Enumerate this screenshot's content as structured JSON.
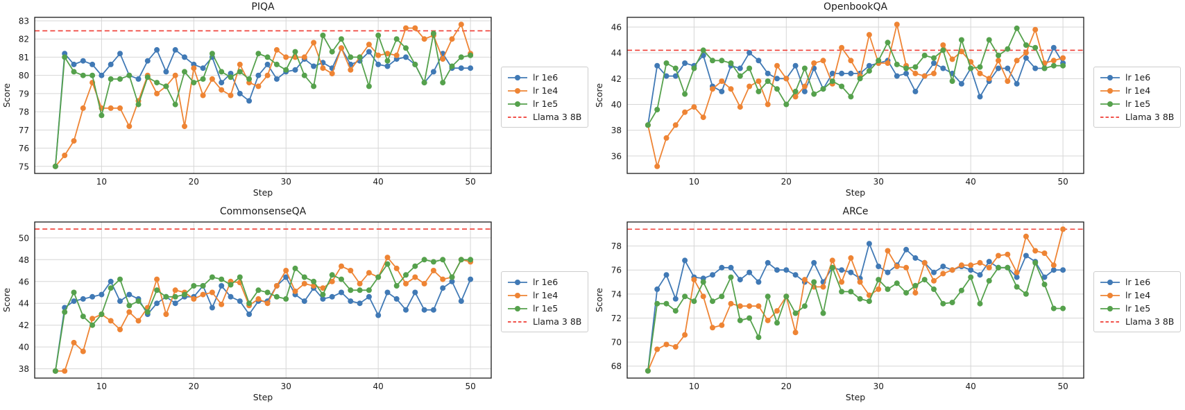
{
  "figure": {
    "background": "#ffffff"
  },
  "colors": {
    "blue": "#4079b5",
    "orange": "#ee8434",
    "green": "#55a14c",
    "red": "#ef3b33",
    "grid": "#d6d6d6",
    "spine": "#1a1a1a",
    "text": "#1a1a1a"
  },
  "chart_data": [
    {
      "type": "line",
      "title": "PIQA",
      "xlabel": "Step",
      "ylabel": "Score",
      "grid": true,
      "legend_position": "center right, outside axes",
      "x": [
        5,
        6,
        7,
        8,
        9,
        10,
        11,
        12,
        13,
        14,
        15,
        16,
        17,
        18,
        19,
        20,
        21,
        22,
        23,
        24,
        25,
        26,
        27,
        28,
        29,
        30,
        31,
        32,
        33,
        34,
        35,
        36,
        37,
        38,
        39,
        40,
        41,
        42,
        43,
        44,
        45,
        46,
        47,
        48,
        49,
        50
      ],
      "xlim": [
        2.75,
        52.25
      ],
      "xticks": [
        10,
        20,
        30,
        40,
        50
      ],
      "ylim": [
        74.61,
        83.19
      ],
      "yticks": [
        75,
        76,
        77,
        78,
        79,
        80,
        81,
        82,
        83
      ],
      "baseline": {
        "label": "Llama 3 8B",
        "value": 82.45,
        "style": "dashed",
        "color_key": "red"
      },
      "series": [
        {
          "name": "lr 1e6",
          "color_key": "blue",
          "values": [
            75.0,
            81.2,
            80.6,
            80.8,
            80.6,
            80.0,
            80.6,
            81.2,
            80.0,
            79.8,
            80.8,
            81.4,
            80.2,
            81.4,
            81.0,
            80.6,
            80.4,
            81.0,
            79.6,
            80.1,
            79.0,
            78.6,
            80.0,
            80.6,
            79.8,
            80.2,
            80.3,
            80.9,
            80.5,
            80.7,
            80.4,
            81.5,
            80.6,
            80.8,
            81.3,
            80.6,
            80.5,
            80.9,
            81.0,
            80.6,
            79.6,
            80.2,
            81.2,
            80.4,
            80.4,
            80.4
          ]
        },
        {
          "name": "lr 1e4",
          "color_key": "orange",
          "values": [
            75.0,
            75.6,
            76.4,
            78.2,
            79.6,
            78.2,
            78.2,
            78.2,
            77.2,
            78.6,
            80.0,
            79.0,
            79.4,
            80.0,
            77.2,
            80.4,
            78.9,
            79.8,
            79.2,
            78.9,
            80.6,
            79.6,
            79.4,
            80.0,
            81.4,
            81.0,
            81.0,
            81.0,
            81.8,
            80.4,
            80.1,
            81.5,
            80.3,
            81.0,
            81.7,
            81.1,
            81.2,
            81.1,
            82.6,
            82.6,
            82.0,
            82.2,
            80.9,
            82.0,
            82.8,
            81.2
          ]
        },
        {
          "name": "lr 1e5",
          "color_key": "green",
          "values": [
            75.0,
            81.0,
            80.2,
            80.0,
            80.0,
            77.8,
            79.8,
            79.8,
            80.0,
            78.4,
            79.9,
            79.6,
            79.4,
            78.4,
            80.2,
            79.6,
            79.8,
            81.2,
            80.2,
            79.9,
            80.2,
            79.8,
            81.2,
            81.0,
            80.6,
            80.3,
            81.3,
            80.0,
            79.4,
            82.2,
            81.3,
            82.0,
            81.0,
            81.0,
            79.4,
            82.2,
            80.8,
            82.0,
            81.5,
            80.6,
            79.6,
            82.3,
            79.6,
            80.5,
            81.0,
            81.1
          ]
        }
      ]
    },
    {
      "type": "line",
      "title": "OpenbookQA",
      "xlabel": "Step",
      "ylabel": "Score",
      "grid": true,
      "legend_position": "center right, outside axes",
      "x": [
        5,
        6,
        7,
        8,
        9,
        10,
        11,
        12,
        13,
        14,
        15,
        16,
        17,
        18,
        19,
        20,
        21,
        22,
        23,
        24,
        25,
        26,
        27,
        28,
        29,
        30,
        31,
        32,
        33,
        34,
        35,
        36,
        37,
        38,
        39,
        40,
        41,
        42,
        43,
        44,
        45,
        46,
        47,
        48,
        49,
        50
      ],
      "xlim": [
        2.75,
        52.25
      ],
      "xticks": [
        10,
        20,
        30,
        40,
        50
      ],
      "ylim": [
        34.65,
        46.75
      ],
      "yticks": [
        36,
        38,
        40,
        42,
        44,
        46
      ],
      "baseline": {
        "label": "Llama 3 8B",
        "value": 44.2,
        "style": "dashed",
        "color_key": "red"
      },
      "series": [
        {
          "name": "lr 1e6",
          "color_key": "blue",
          "values": [
            38.4,
            43.0,
            42.2,
            42.2,
            43.2,
            43.0,
            43.8,
            41.4,
            41.0,
            43.0,
            42.8,
            44.0,
            43.4,
            42.4,
            42.0,
            42.0,
            43.0,
            41.0,
            42.8,
            41.2,
            42.4,
            42.4,
            42.4,
            42.4,
            43.0,
            43.2,
            43.4,
            42.2,
            42.4,
            41.0,
            42.2,
            43.2,
            42.8,
            42.4,
            41.6,
            42.8,
            40.6,
            41.8,
            42.8,
            42.8,
            41.6,
            43.6,
            42.8,
            42.8,
            44.4,
            43.2
          ]
        },
        {
          "name": "lr 1e4",
          "color_key": "orange",
          "values": [
            38.4,
            35.2,
            37.4,
            38.4,
            39.4,
            39.8,
            39.0,
            41.2,
            41.8,
            41.2,
            39.8,
            41.4,
            41.8,
            40.0,
            43.0,
            42.0,
            40.6,
            41.4,
            43.2,
            43.4,
            41.6,
            44.4,
            43.4,
            42.2,
            45.4,
            43.2,
            43.2,
            46.2,
            43.0,
            42.4,
            42.2,
            42.4,
            44.6,
            43.5,
            44.1,
            43.3,
            42.4,
            42.0,
            43.4,
            41.8,
            43.4,
            44.0,
            45.8,
            43.2,
            43.4,
            43.6
          ]
        },
        {
          "name": "lr 1e5",
          "color_key": "green",
          "values": [
            38.4,
            39.6,
            43.2,
            42.8,
            40.8,
            42.8,
            44.2,
            43.4,
            43.4,
            43.2,
            42.2,
            42.8,
            41.0,
            41.8,
            41.2,
            40.0,
            41.0,
            42.8,
            40.8,
            41.2,
            41.8,
            41.4,
            40.6,
            42.0,
            42.6,
            43.4,
            44.8,
            43.1,
            42.8,
            42.9,
            43.8,
            43.6,
            44.2,
            41.8,
            45.0,
            42.8,
            42.9,
            45.0,
            43.8,
            44.3,
            45.9,
            44.6,
            44.4,
            42.8,
            43.0,
            43.0
          ]
        }
      ]
    },
    {
      "type": "line",
      "title": "CommonsenseQA",
      "xlabel": "Step",
      "ylabel": "Score",
      "grid": true,
      "legend_position": "center right, outside axes",
      "x": [
        5,
        6,
        7,
        8,
        9,
        10,
        11,
        12,
        13,
        14,
        15,
        16,
        17,
        18,
        19,
        20,
        21,
        22,
        23,
        24,
        25,
        26,
        27,
        28,
        29,
        30,
        31,
        32,
        33,
        34,
        35,
        36,
        37,
        38,
        39,
        40,
        41,
        42,
        43,
        44,
        45,
        46,
        47,
        48,
        49,
        50
      ],
      "xlim": [
        2.75,
        52.25
      ],
      "xticks": [
        10,
        20,
        30,
        40,
        50
      ],
      "ylim": [
        37.15,
        51.45
      ],
      "yticks": [
        38,
        40,
        42,
        44,
        46,
        48,
        50
      ],
      "baseline": {
        "label": "Llama 3 8B",
        "value": 50.8,
        "style": "dashed",
        "color_key": "red"
      },
      "series": [
        {
          "name": "lr 1e6",
          "color_key": "blue",
          "values": [
            37.8,
            43.6,
            44.2,
            44.4,
            44.6,
            44.8,
            46.0,
            44.2,
            44.8,
            44.4,
            43.0,
            44.0,
            44.6,
            44.0,
            44.6,
            44.6,
            45.6,
            43.6,
            45.6,
            44.6,
            44.2,
            43.0,
            44.2,
            44.2,
            45.6,
            46.4,
            44.8,
            44.2,
            45.4,
            44.4,
            44.6,
            45.0,
            44.2,
            44.0,
            44.6,
            42.9,
            45.0,
            44.4,
            43.4,
            45.0,
            43.4,
            43.4,
            45.4,
            46.0,
            44.2,
            46.2
          ]
        },
        {
          "name": "lr 1e4",
          "color_key": "orange",
          "values": [
            37.8,
            37.8,
            40.4,
            39.6,
            42.6,
            43.0,
            42.4,
            41.6,
            43.2,
            42.4,
            43.6,
            46.2,
            43.0,
            45.2,
            45.0,
            44.4,
            44.8,
            45.0,
            43.9,
            46.0,
            45.9,
            43.8,
            44.4,
            44.0,
            45.6,
            47.0,
            45.1,
            45.8,
            45.6,
            45.4,
            46.0,
            47.4,
            47.0,
            45.8,
            46.8,
            46.4,
            48.2,
            47.2,
            45.8,
            46.4,
            45.8,
            47.0,
            46.2,
            46.4,
            48.0,
            47.8
          ]
        },
        {
          "name": "lr 1e5",
          "color_key": "green",
          "values": [
            37.8,
            43.2,
            45.0,
            42.8,
            42.0,
            43.0,
            45.4,
            46.2,
            43.8,
            44.2,
            43.2,
            45.2,
            44.6,
            44.6,
            44.8,
            45.6,
            45.6,
            46.4,
            46.2,
            45.7,
            46.4,
            44.0,
            45.2,
            45.0,
            44.6,
            44.4,
            47.2,
            46.4,
            46.0,
            44.8,
            46.6,
            46.2,
            45.2,
            45.2,
            45.2,
            46.4,
            47.6,
            45.6,
            46.6,
            47.4,
            48.0,
            47.8,
            48.0,
            46.4,
            48.0,
            48.0
          ]
        }
      ]
    },
    {
      "type": "line",
      "title": "ARCe",
      "xlabel": "Step",
      "ylabel": "Score",
      "grid": true,
      "legend_position": "center right, outside axes",
      "x": [
        5,
        6,
        7,
        8,
        9,
        10,
        11,
        12,
        13,
        14,
        15,
        16,
        17,
        18,
        19,
        20,
        21,
        22,
        23,
        24,
        25,
        26,
        27,
        28,
        29,
        30,
        31,
        32,
        33,
        34,
        35,
        36,
        37,
        38,
        39,
        40,
        41,
        42,
        43,
        44,
        45,
        46,
        47,
        48,
        49,
        50
      ],
      "xlim": [
        2.75,
        52.25
      ],
      "xticks": [
        10,
        20,
        30,
        40,
        50
      ],
      "ylim": [
        67.0,
        80.0
      ],
      "yticks": [
        68,
        70,
        72,
        74,
        76,
        78
      ],
      "baseline": {
        "label": "Llama 3 8B",
        "value": 79.4,
        "style": "dashed",
        "color_key": "red"
      },
      "series": [
        {
          "name": "lr 1e6",
          "color_key": "blue",
          "values": [
            67.6,
            74.4,
            75.6,
            73.6,
            76.8,
            75.4,
            75.3,
            75.6,
            76.2,
            76.2,
            75.2,
            75.8,
            75.0,
            76.6,
            76.0,
            76.0,
            75.6,
            75.0,
            76.6,
            75.0,
            76.2,
            76.0,
            75.8,
            75.3,
            78.2,
            76.3,
            75.8,
            76.4,
            77.7,
            77.0,
            76.6,
            75.8,
            76.3,
            76.0,
            76.3,
            76.0,
            75.6,
            76.7,
            76.2,
            76.2,
            75.4,
            77.2,
            76.7,
            75.4,
            76.0,
            76.0
          ]
        },
        {
          "name": "lr 1e4",
          "color_key": "orange",
          "values": [
            67.6,
            69.4,
            69.8,
            69.6,
            70.6,
            75.2,
            73.8,
            71.2,
            71.4,
            73.2,
            73.0,
            73.0,
            73.0,
            71.8,
            72.6,
            73.8,
            70.8,
            75.2,
            74.6,
            74.6,
            76.8,
            75.0,
            77.0,
            75.0,
            73.9,
            74.4,
            77.6,
            76.3,
            76.2,
            74.1,
            76.6,
            75.1,
            75.7,
            76.0,
            76.4,
            76.4,
            76.6,
            76.2,
            77.2,
            77.3,
            75.8,
            78.8,
            77.6,
            77.4,
            76.4,
            79.4
          ]
        },
        {
          "name": "lr 1e5",
          "color_key": "green",
          "values": [
            67.6,
            73.2,
            73.2,
            72.6,
            73.8,
            73.4,
            75.0,
            73.4,
            73.8,
            75.4,
            71.8,
            72.0,
            70.4,
            73.8,
            71.6,
            73.8,
            72.4,
            73.0,
            75.0,
            72.4,
            76.2,
            74.2,
            74.2,
            73.6,
            73.4,
            75.2,
            74.4,
            74.9,
            74.1,
            74.7,
            75.2,
            74.4,
            73.2,
            73.3,
            74.3,
            75.4,
            73.2,
            75.1,
            76.2,
            76.2,
            74.6,
            74.0,
            76.6,
            74.8,
            72.8,
            72.8
          ]
        }
      ]
    }
  ]
}
